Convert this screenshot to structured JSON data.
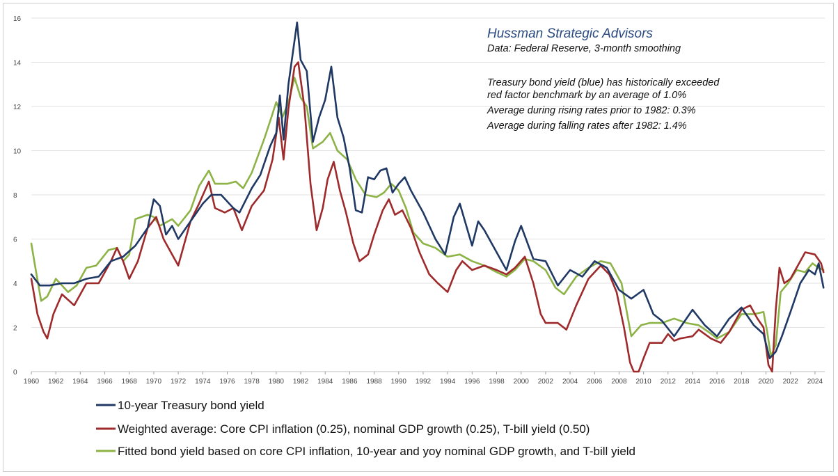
{
  "chart_data": {
    "type": "line",
    "title": "",
    "xlabel": "",
    "ylabel": "",
    "xlim": [
      1960,
      2024.8
    ],
    "ylim": [
      0,
      16
    ],
    "yticks": [
      "0",
      "2",
      "4",
      "6",
      "8",
      "10",
      "12",
      "14",
      "16"
    ],
    "xticks": [
      "1960",
      "1962",
      "1964",
      "1966",
      "1968",
      "1970",
      "1972",
      "1974",
      "1976",
      "1978",
      "1980",
      "1982",
      "1984",
      "1986",
      "1988",
      "1990",
      "1992",
      "1994",
      "1996",
      "1998",
      "2000",
      "2002",
      "2004",
      "2006",
      "2008",
      "2010",
      "2012",
      "2014",
      "2016",
      "2018",
      "2020",
      "2022",
      "2024"
    ],
    "grid": "horizontal",
    "legend_position": "bottom",
    "annotations": {
      "title": "Hussman Strategic Advisors",
      "source": "Data: Federal Reserve, 3-month smoothing",
      "lines": [
        "Treasury bond yield (blue) has historically exceeded",
        "red factor benchmark by an average of 1.0%",
        "Average during rising rates prior to 1982: 0.3%",
        "Average during falling rates after 1982: 1.4%"
      ]
    },
    "series": [
      {
        "name": "10-year Treasury bond yield",
        "color": "#1f3864",
        "points": [
          [
            1960,
            4.4
          ],
          [
            1960.7,
            3.9
          ],
          [
            1961.5,
            3.9
          ],
          [
            1962.5,
            4.0
          ],
          [
            1963.5,
            4.0
          ],
          [
            1964.5,
            4.2
          ],
          [
            1965.5,
            4.3
          ],
          [
            1966.5,
            5.0
          ],
          [
            1967.5,
            5.2
          ],
          [
            1968.5,
            5.7
          ],
          [
            1969.5,
            6.5
          ],
          [
            1970,
            7.8
          ],
          [
            1970.5,
            7.5
          ],
          [
            1971,
            6.2
          ],
          [
            1971.5,
            6.6
          ],
          [
            1972,
            6.0
          ],
          [
            1973,
            6.8
          ],
          [
            1974,
            7.6
          ],
          [
            1974.7,
            8.0
          ],
          [
            1975.5,
            8.0
          ],
          [
            1976.5,
            7.4
          ],
          [
            1977,
            7.2
          ],
          [
            1978,
            8.3
          ],
          [
            1978.7,
            8.9
          ],
          [
            1979.5,
            10.2
          ],
          [
            1980,
            10.8
          ],
          [
            1980.3,
            12.5
          ],
          [
            1980.6,
            10.5
          ],
          [
            1981,
            13.0
          ],
          [
            1981.7,
            15.8
          ],
          [
            1982,
            14.1
          ],
          [
            1982.5,
            13.6
          ],
          [
            1983,
            10.4
          ],
          [
            1983.5,
            11.5
          ],
          [
            1984,
            12.3
          ],
          [
            1984.5,
            13.8
          ],
          [
            1985,
            11.5
          ],
          [
            1985.5,
            10.6
          ],
          [
            1986,
            9.2
          ],
          [
            1986.5,
            7.3
          ],
          [
            1987,
            7.2
          ],
          [
            1987.5,
            8.8
          ],
          [
            1988,
            8.7
          ],
          [
            1988.5,
            9.1
          ],
          [
            1989,
            9.2
          ],
          [
            1989.5,
            8.1
          ],
          [
            1990,
            8.5
          ],
          [
            1990.5,
            8.8
          ],
          [
            1991,
            8.2
          ],
          [
            1992,
            7.2
          ],
          [
            1993,
            6.0
          ],
          [
            1993.8,
            5.3
          ],
          [
            1994.5,
            7.0
          ],
          [
            1995,
            7.6
          ],
          [
            1996,
            5.7
          ],
          [
            1996.5,
            6.8
          ],
          [
            1997,
            6.4
          ],
          [
            1998,
            5.4
          ],
          [
            1998.8,
            4.6
          ],
          [
            1999.5,
            5.9
          ],
          [
            2000,
            6.6
          ],
          [
            2001,
            5.1
          ],
          [
            2002,
            5.0
          ],
          [
            2003,
            3.9
          ],
          [
            2004,
            4.6
          ],
          [
            2005,
            4.3
          ],
          [
            2006,
            5.0
          ],
          [
            2007,
            4.7
          ],
          [
            2008,
            3.7
          ],
          [
            2009,
            3.3
          ],
          [
            2010,
            3.7
          ],
          [
            2010.8,
            2.6
          ],
          [
            2011.5,
            2.3
          ],
          [
            2012.5,
            1.6
          ],
          [
            2013,
            2.0
          ],
          [
            2014,
            2.8
          ],
          [
            2015,
            2.1
          ],
          [
            2016,
            1.6
          ],
          [
            2017,
            2.4
          ],
          [
            2018,
            2.9
          ],
          [
            2019,
            2.1
          ],
          [
            2019.8,
            1.7
          ],
          [
            2020.3,
            0.6
          ],
          [
            2020.8,
            0.9
          ],
          [
            2021.3,
            1.6
          ],
          [
            2022,
            2.7
          ],
          [
            2022.8,
            4.0
          ],
          [
            2023.5,
            4.6
          ],
          [
            2024,
            4.4
          ],
          [
            2024.3,
            4.9
          ],
          [
            2024.7,
            3.8
          ]
        ]
      },
      {
        "name": "Weighted average: Core CPI inflation (0.25), nominal GDP growth (0.25), T-bill yield (0.50)",
        "color": "#9e2a2b",
        "points": [
          [
            1960,
            4.2
          ],
          [
            1960.5,
            2.6
          ],
          [
            1961,
            1.8
          ],
          [
            1961.3,
            1.5
          ],
          [
            1961.8,
            2.6
          ],
          [
            1962.5,
            3.5
          ],
          [
            1963.5,
            3.0
          ],
          [
            1964.5,
            4.0
          ],
          [
            1965.5,
            4.0
          ],
          [
            1966.5,
            5.0
          ],
          [
            1967,
            5.6
          ],
          [
            1967.5,
            5.0
          ],
          [
            1968,
            4.2
          ],
          [
            1968.7,
            5.0
          ],
          [
            1969.5,
            6.5
          ],
          [
            1970.2,
            7.0
          ],
          [
            1970.8,
            6.0
          ],
          [
            1971.5,
            5.3
          ],
          [
            1972,
            4.8
          ],
          [
            1973,
            6.8
          ],
          [
            1973.7,
            7.6
          ],
          [
            1974.5,
            8.6
          ],
          [
            1975,
            7.4
          ],
          [
            1975.8,
            7.2
          ],
          [
            1976.5,
            7.4
          ],
          [
            1977.2,
            6.4
          ],
          [
            1978,
            7.5
          ],
          [
            1979,
            8.2
          ],
          [
            1979.7,
            9.6
          ],
          [
            1980.2,
            11.5
          ],
          [
            1980.6,
            9.6
          ],
          [
            1981,
            11.9
          ],
          [
            1981.5,
            13.8
          ],
          [
            1981.8,
            14.0
          ],
          [
            1982.3,
            12.0
          ],
          [
            1982.8,
            8.5
          ],
          [
            1983.3,
            6.4
          ],
          [
            1983.8,
            7.4
          ],
          [
            1984.2,
            8.7
          ],
          [
            1984.7,
            9.5
          ],
          [
            1985.2,
            8.2
          ],
          [
            1985.7,
            7.2
          ],
          [
            1986.3,
            5.8
          ],
          [
            1986.8,
            5.0
          ],
          [
            1987.5,
            5.3
          ],
          [
            1988,
            6.2
          ],
          [
            1988.7,
            7.3
          ],
          [
            1989.2,
            7.8
          ],
          [
            1989.7,
            7.1
          ],
          [
            1990.3,
            7.3
          ],
          [
            1991,
            6.5
          ],
          [
            1991.7,
            5.4
          ],
          [
            1992.5,
            4.4
          ],
          [
            1993.2,
            4.0
          ],
          [
            1994,
            3.6
          ],
          [
            1994.7,
            4.6
          ],
          [
            1995.2,
            5.0
          ],
          [
            1996,
            4.6
          ],
          [
            1997,
            4.8
          ],
          [
            1998,
            4.6
          ],
          [
            1998.8,
            4.4
          ],
          [
            1999.5,
            4.7
          ],
          [
            2000.3,
            5.2
          ],
          [
            2001,
            4.0
          ],
          [
            2001.6,
            2.6
          ],
          [
            2002,
            2.2
          ],
          [
            2003,
            2.2
          ],
          [
            2003.7,
            1.9
          ],
          [
            2004.5,
            3.0
          ],
          [
            2005.5,
            4.2
          ],
          [
            2006.5,
            4.8
          ],
          [
            2007.2,
            4.4
          ],
          [
            2007.8,
            3.6
          ],
          [
            2008.4,
            2.0
          ],
          [
            2008.9,
            0.4
          ],
          [
            2009.2,
            0.0
          ],
          [
            2009.6,
            0.0
          ],
          [
            2010,
            0.6
          ],
          [
            2010.5,
            1.3
          ],
          [
            2011.5,
            1.3
          ],
          [
            2012,
            1.7
          ],
          [
            2012.5,
            1.4
          ],
          [
            2013,
            1.5
          ],
          [
            2014,
            1.6
          ],
          [
            2014.5,
            1.9
          ],
          [
            2015.5,
            1.5
          ],
          [
            2016.3,
            1.3
          ],
          [
            2017,
            1.8
          ],
          [
            2018,
            2.8
          ],
          [
            2018.7,
            3.0
          ],
          [
            2019.3,
            2.4
          ],
          [
            2019.8,
            2.0
          ],
          [
            2020.2,
            0.3
          ],
          [
            2020.5,
            0.0
          ],
          [
            2020.8,
            2.8
          ],
          [
            2021.1,
            4.7
          ],
          [
            2021.5,
            4.0
          ],
          [
            2022,
            4.2
          ],
          [
            2022.6,
            4.8
          ],
          [
            2023.2,
            5.4
          ],
          [
            2024,
            5.3
          ],
          [
            2024.5,
            4.9
          ],
          [
            2024.7,
            4.5
          ]
        ]
      },
      {
        "name": "Fitted bond yield based on core CPI inflation, 10-year and yoy nominal GDP growth, and T-bill yield",
        "color": "#8db347",
        "points": [
          [
            1960,
            5.8
          ],
          [
            1960.3,
            4.8
          ],
          [
            1960.8,
            3.2
          ],
          [
            1961.3,
            3.4
          ],
          [
            1962,
            4.2
          ],
          [
            1963,
            3.6
          ],
          [
            1963.7,
            3.9
          ],
          [
            1964.5,
            4.7
          ],
          [
            1965.3,
            4.8
          ],
          [
            1966.3,
            5.5
          ],
          [
            1967,
            5.6
          ],
          [
            1967.5,
            5.0
          ],
          [
            1968,
            5.3
          ],
          [
            1968.5,
            6.9
          ],
          [
            1969.5,
            7.1
          ],
          [
            1970,
            7.0
          ],
          [
            1970.5,
            6.6
          ],
          [
            1971.5,
            6.9
          ],
          [
            1972,
            6.6
          ],
          [
            1973,
            7.3
          ],
          [
            1973.7,
            8.4
          ],
          [
            1974.5,
            9.1
          ],
          [
            1975,
            8.5
          ],
          [
            1976,
            8.5
          ],
          [
            1976.7,
            8.6
          ],
          [
            1977.3,
            8.3
          ],
          [
            1978,
            9.0
          ],
          [
            1979,
            10.5
          ],
          [
            1979.6,
            11.5
          ],
          [
            1980,
            12.2
          ],
          [
            1980.5,
            11.5
          ],
          [
            1981,
            12.2
          ],
          [
            1981.5,
            13.3
          ],
          [
            1982,
            12.4
          ],
          [
            1982.5,
            12.0
          ],
          [
            1983,
            10.1
          ],
          [
            1983.8,
            10.4
          ],
          [
            1984.4,
            10.8
          ],
          [
            1985,
            10.0
          ],
          [
            1985.8,
            9.6
          ],
          [
            1986.5,
            8.7
          ],
          [
            1987.3,
            8.0
          ],
          [
            1988.2,
            7.9
          ],
          [
            1988.8,
            8.1
          ],
          [
            1989.4,
            8.5
          ],
          [
            1990,
            8.2
          ],
          [
            1990.6,
            7.4
          ],
          [
            1991.2,
            6.3
          ],
          [
            1992,
            5.8
          ],
          [
            1993,
            5.6
          ],
          [
            1994,
            5.2
          ],
          [
            1995,
            5.3
          ],
          [
            1996,
            5.0
          ],
          [
            1997,
            4.8
          ],
          [
            1998,
            4.5
          ],
          [
            1998.8,
            4.3
          ],
          [
            1999.5,
            4.6
          ],
          [
            2000.3,
            5.1
          ],
          [
            2001,
            5.0
          ],
          [
            2002,
            4.6
          ],
          [
            2002.8,
            3.8
          ],
          [
            2003.5,
            3.5
          ],
          [
            2004.5,
            4.3
          ],
          [
            2005.5,
            4.7
          ],
          [
            2006.5,
            5.0
          ],
          [
            2007.3,
            4.9
          ],
          [
            2008.2,
            4.0
          ],
          [
            2009,
            1.6
          ],
          [
            2009.8,
            2.1
          ],
          [
            2010.5,
            2.2
          ],
          [
            2011.5,
            2.2
          ],
          [
            2012.5,
            2.4
          ],
          [
            2013.5,
            2.2
          ],
          [
            2014.5,
            2.1
          ],
          [
            2015.3,
            1.8
          ],
          [
            2016,
            1.5
          ],
          [
            2017,
            1.8
          ],
          [
            2018,
            2.6
          ],
          [
            2019,
            2.6
          ],
          [
            2019.8,
            2.7
          ],
          [
            2020.1,
            1.8
          ],
          [
            2020.4,
            0.7
          ],
          [
            2020.8,
            1.2
          ],
          [
            2021.2,
            3.6
          ],
          [
            2021.8,
            4.0
          ],
          [
            2022.5,
            4.6
          ],
          [
            2023.2,
            4.5
          ],
          [
            2023.8,
            4.9
          ],
          [
            2024.3,
            4.7
          ],
          [
            2024.7,
            4.6
          ]
        ]
      }
    ]
  }
}
